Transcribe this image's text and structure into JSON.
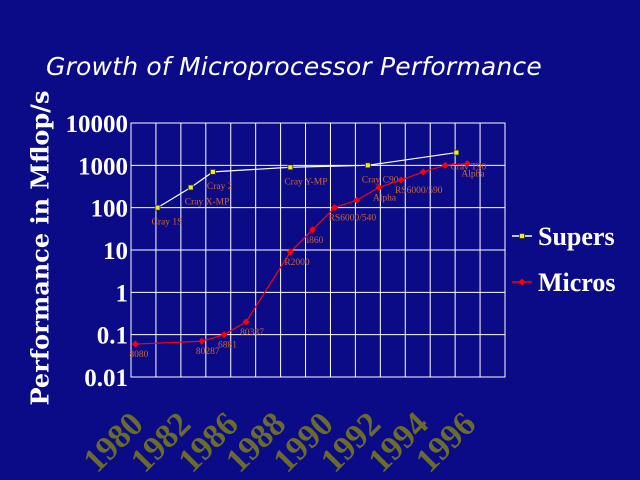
{
  "slide": {
    "title": "Growth of Microprocessor Performance"
  },
  "chart_data": {
    "type": "line",
    "title": "Growth of Microprocessor Performance",
    "ylabel": "Performance in Mflop/s",
    "xlabel": "",
    "y_scale": "log",
    "ylim": [
      0.01,
      10000
    ],
    "xlim": [
      1979.8,
      1996.7
    ],
    "y_ticks": [
      "10000",
      "1000",
      "100",
      "10",
      "1",
      "0.1",
      "0.01"
    ],
    "x_ticks": [
      "1980",
      "1982",
      "1986",
      "1988",
      "1990",
      "1992",
      "1994",
      "1996"
    ],
    "grid": true,
    "legend_position": "right",
    "series": [
      {
        "name": "Supers",
        "color": "#ffffff",
        "marker_color": "#e8e840",
        "marker": "square",
        "points": [
          {
            "x": 1981,
            "y": 100,
            "label": "Cray 1S"
          },
          {
            "x": 1982.5,
            "y": 300,
            "label": "Cray X-MP"
          },
          {
            "x": 1983.5,
            "y": 700,
            "label": "Cray 2"
          },
          {
            "x": 1987,
            "y": 900,
            "label": "Cray Y-MP"
          },
          {
            "x": 1990.5,
            "y": 1000,
            "label": "Cray C90"
          },
          {
            "x": 1994.5,
            "y": 2000,
            "label": "Cray T90"
          }
        ]
      },
      {
        "name": "Micros",
        "color": "#ff0000",
        "marker_color": "#ff0000",
        "marker": "diamond",
        "points": [
          {
            "x": 1980,
            "y": 0.06,
            "label": "8080"
          },
          {
            "x": 1983,
            "y": 0.07,
            "label": "80287"
          },
          {
            "x": 1984,
            "y": 0.1,
            "label": "6881"
          },
          {
            "x": 1985,
            "y": 0.2,
            "label": "80387"
          },
          {
            "x": 1987,
            "y": 9,
            "label": "R2000"
          },
          {
            "x": 1988,
            "y": 30,
            "label": "i860"
          },
          {
            "x": 1989,
            "y": 100,
            "label": "RS6000/540"
          },
          {
            "x": 1990,
            "y": 150,
            "label": ""
          },
          {
            "x": 1991,
            "y": 300,
            "label": "Alpha"
          },
          {
            "x": 1992,
            "y": 450,
            "label": "RS6000/590"
          },
          {
            "x": 1993,
            "y": 700,
            "label": ""
          },
          {
            "x": 1994,
            "y": 1000,
            "label": ""
          },
          {
            "x": 1995,
            "y": 1100,
            "label": "Alpha"
          }
        ]
      }
    ]
  }
}
